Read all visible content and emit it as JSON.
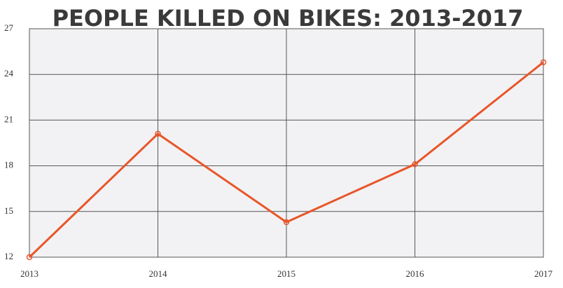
{
  "chart_data": {
    "type": "line",
    "title": "PEOPLE KILLED ON BIKES: 2013-2017",
    "x": [
      2013,
      2014,
      2015,
      2016,
      2017
    ],
    "series": [
      {
        "name": "People killed",
        "color": "#e8562a",
        "values": [
          12,
          20.1,
          14.3,
          18.1,
          24.8
        ]
      }
    ],
    "xlim": [
      2013,
      2017
    ],
    "xticks": [
      2013,
      2014,
      2015,
      2016,
      2017
    ],
    "ylim": [
      12,
      27
    ],
    "yticks": [
      12,
      15,
      18,
      21,
      24,
      27
    ],
    "grid": true
  }
}
